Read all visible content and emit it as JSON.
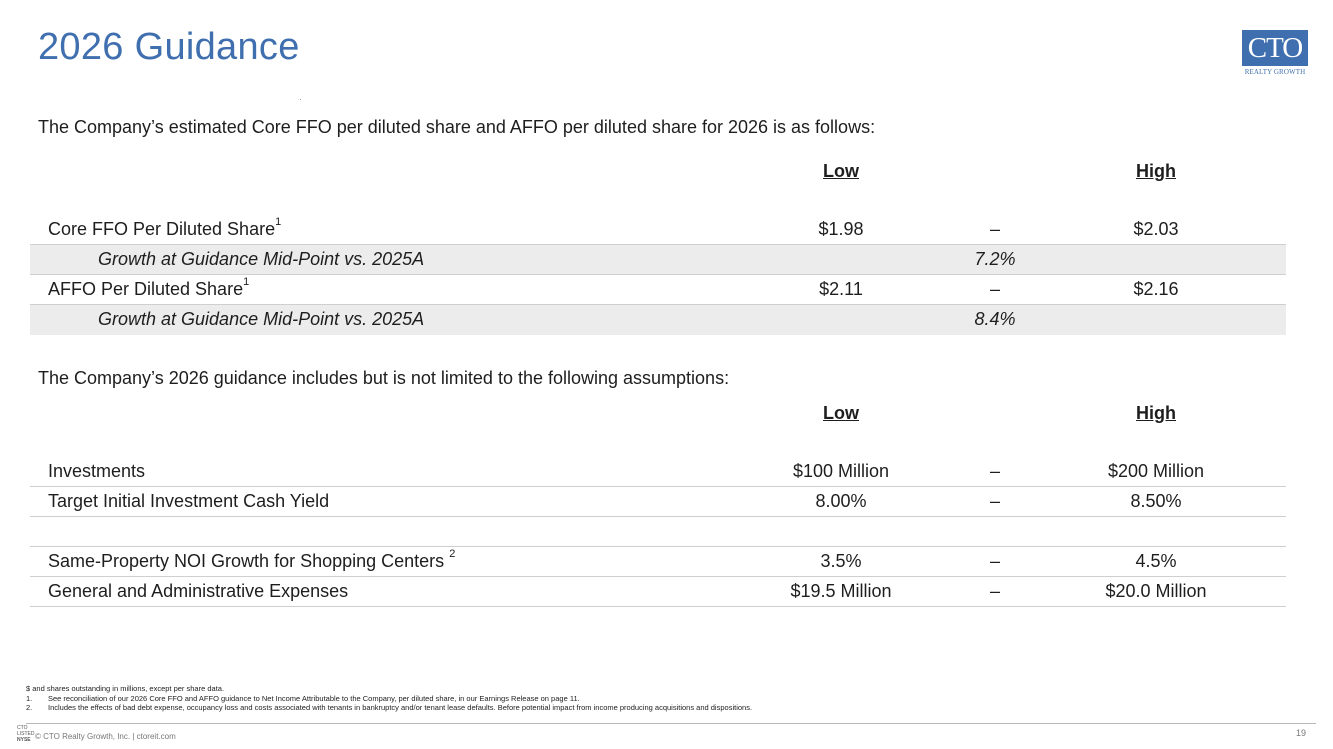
{
  "title": "2026 Guidance",
  "logo": {
    "mark": "CTO",
    "tagline": "REALTY GROWTH"
  },
  "section1": {
    "intro": "The Company’s estimated Core FFO per diluted share and AFFO per diluted share for 2026 is as follows:",
    "low_header": "Low",
    "high_header": "High",
    "rows": [
      {
        "label": "Core FFO Per Diluted Share",
        "sup": "1",
        "low": "$1.98",
        "sep": "–",
        "high": "$2.03"
      },
      {
        "label": "Growth at Guidance Mid-Point vs. 2025A",
        "mid": "7.2%"
      },
      {
        "label": "AFFO Per Diluted Share",
        "sup": "1",
        "low": "$2.11",
        "sep": "–",
        "high": "$2.16"
      },
      {
        "label": "Growth at Guidance Mid-Point vs. 2025A",
        "mid": "8.4%"
      }
    ]
  },
  "section2": {
    "intro": "The Company’s 2026 guidance includes but is not limited to the following assumptions:",
    "low_header": "Low",
    "high_header": "High",
    "rows": [
      {
        "label": "Investments",
        "low": "$100 Million",
        "sep": "–",
        "high": "$200 Million"
      },
      {
        "label": "Target Initial Investment Cash Yield",
        "low": "8.00%",
        "sep": "–",
        "high": "8.50%"
      },
      {
        "label": "Same-Property NOI Growth for Shopping Centers",
        "sup": "2",
        "low": "3.5%",
        "sep": "–",
        "high": "4.5%"
      },
      {
        "label": "General and Administrative Expenses",
        "low": "$19.5 Million",
        "sep": "–",
        "high": "$20.0 Million"
      }
    ]
  },
  "footnotes": {
    "intro": "$ and shares outstanding in millions, except per share data.",
    "items": [
      {
        "num": "1.",
        "text": "See reconciliation of our 2026 Core FFO and AFFO guidance to Net Income Attributable to the Company, per diluted share, in our Earnings Release on page 11."
      },
      {
        "num": "2.",
        "text": "Includes the effects of bad debt expense, occupancy loss and costs associated with tenants in bankruptcy and/or tenant lease defaults. Before potential impact from income producing acquisitions and dispositions."
      }
    ]
  },
  "footer": {
    "logo_line1": "CTO",
    "logo_line2": "LISTED",
    "logo_line3": "NYSE",
    "copyright": "© CTO Realty Growth, Inc. | ctoreit.com",
    "page": "19"
  }
}
